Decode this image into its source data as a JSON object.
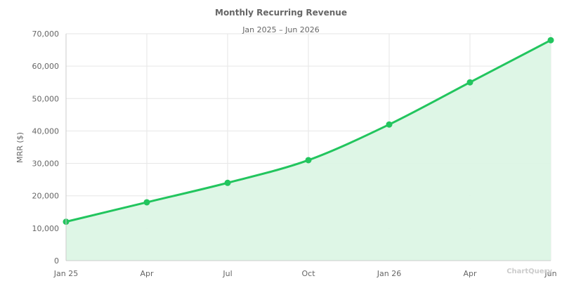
{
  "chart_data": {
    "type": "area",
    "title": "Monthly Recurring Revenue",
    "subtitle": "Jan 2025 – Jun 2026",
    "xlabel": "",
    "ylabel": "MRR ($)",
    "ylim": [
      0,
      70000
    ],
    "yticks": [
      0,
      10000,
      20000,
      30000,
      40000,
      50000,
      60000,
      70000
    ],
    "ytick_labels": [
      "0",
      "10,000",
      "20,000",
      "30,000",
      "40,000",
      "50,000",
      "60,000",
      "70,000"
    ],
    "x_index_range": [
      0,
      18
    ],
    "xtick_positions": [
      0,
      3,
      6,
      9,
      12,
      15,
      18
    ],
    "xtick_labels": [
      "Jan 25",
      "Apr",
      "Jul",
      "Oct",
      "Jan 26",
      "Apr",
      "Jun"
    ],
    "grid": true,
    "legend": "none",
    "series": [
      {
        "name": "MRR",
        "x": [
          0,
          3,
          6,
          9,
          12,
          15,
          18
        ],
        "values": [
          12000,
          18000,
          24000,
          31000,
          42000,
          55000,
          68000
        ]
      }
    ]
  },
  "colors": {
    "line": "#22c55e",
    "fill": "#dcf5e5",
    "text": "#666666",
    "grid": "#e6e6e6"
  },
  "watermark": "ChartQuery"
}
